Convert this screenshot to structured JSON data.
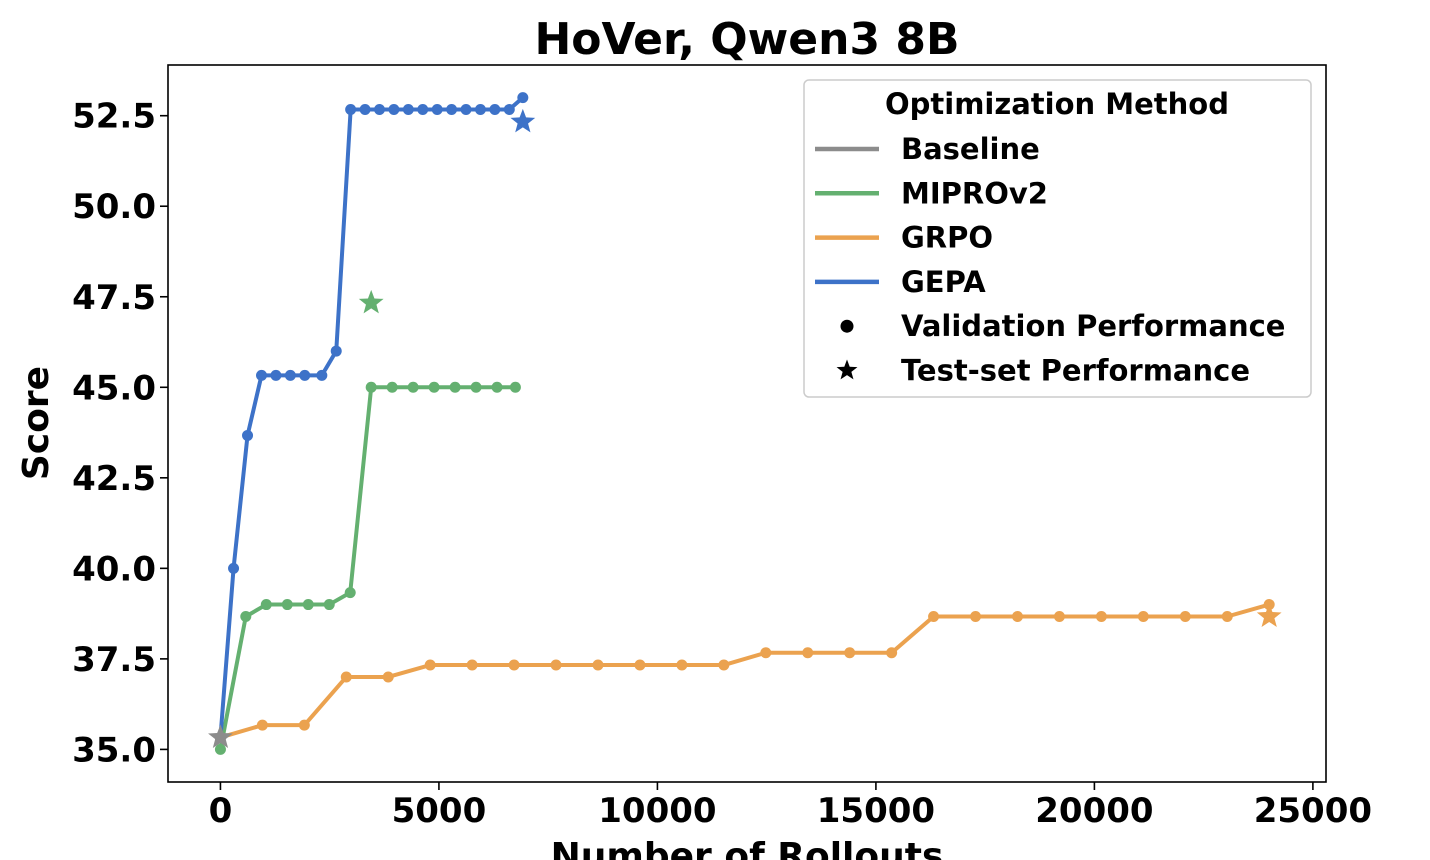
{
  "chart_data": {
    "type": "line",
    "title": "HoVer, Qwen3 8B",
    "xlabel": "Number of Rollouts",
    "ylabel": "Score",
    "xlim": [
      -1200,
      25300
    ],
    "ylim": [
      34.1,
      53.9
    ],
    "xticks": [
      0,
      5000,
      10000,
      15000,
      20000,
      25000
    ],
    "xtick_labels": [
      "0",
      "5000",
      "10000",
      "15000",
      "20000",
      "25000"
    ],
    "yticks": [
      35.0,
      37.5,
      40.0,
      42.5,
      45.0,
      47.5,
      50.0,
      52.5
    ],
    "ytick_labels": [
      "35.0",
      "37.5",
      "40.0",
      "42.5",
      "45.0",
      "47.5",
      "50.0",
      "52.5"
    ],
    "grid": false,
    "legend": {
      "title": "Optimization Method",
      "placement": "upper right",
      "entries": [
        {
          "label": "Baseline",
          "kind": "line",
          "color": "#8c8c8c"
        },
        {
          "label": "MIPROv2",
          "kind": "line",
          "color": "#64b070"
        },
        {
          "label": "GRPO",
          "kind": "line",
          "color": "#eba24f"
        },
        {
          "label": "GEPA",
          "kind": "line",
          "color": "#3d72c8"
        },
        {
          "label": "Validation Performance",
          "kind": "dot",
          "color": "#000000"
        },
        {
          "label": "Test-set Performance",
          "kind": "star",
          "color": "#000000"
        }
      ]
    },
    "series": [
      {
        "name": "GRPO",
        "color": "#eba24f",
        "x": [
          0,
          960,
          1920,
          2880,
          3840,
          4800,
          5760,
          6720,
          7680,
          8640,
          9600,
          10560,
          11520,
          12480,
          13440,
          14400,
          15360,
          16320,
          17280,
          18240,
          19200,
          20160,
          21120,
          22080,
          23040,
          24000
        ],
        "y": [
          35.33,
          35.67,
          35.67,
          37.0,
          37.0,
          37.33,
          37.33,
          37.33,
          37.33,
          37.33,
          37.33,
          37.33,
          37.33,
          37.67,
          37.67,
          37.67,
          37.67,
          38.67,
          38.67,
          38.67,
          38.67,
          38.67,
          38.67,
          38.67,
          38.67,
          39.0
        ],
        "test": {
          "x": 24000,
          "y": 38.67
        }
      },
      {
        "name": "MIPROv2",
        "color": "#64b070",
        "x": [
          0,
          580,
          1050,
          1530,
          2010,
          2490,
          2970,
          3450,
          3930,
          4410,
          4890,
          5370,
          5850,
          6330,
          6750
        ],
        "y": [
          35.0,
          38.67,
          39.0,
          39.0,
          39.0,
          39.0,
          39.33,
          45.0,
          45.0,
          45.0,
          45.0,
          45.0,
          45.0,
          45.0,
          45.0
        ],
        "test": {
          "x": 3450,
          "y": 47.33
        }
      },
      {
        "name": "GEPA",
        "color": "#3d72c8",
        "x": [
          0,
          300,
          620,
          940,
          1270,
          1600,
          1930,
          2320,
          2650,
          2980,
          3310,
          3640,
          3970,
          4300,
          4630,
          4960,
          5290,
          5620,
          5950,
          6280,
          6610,
          6920
        ],
        "y": [
          35.33,
          40.0,
          43.67,
          45.33,
          45.33,
          45.33,
          45.33,
          45.33,
          46.0,
          52.67,
          52.67,
          52.67,
          52.67,
          52.67,
          52.67,
          52.67,
          52.67,
          52.67,
          52.67,
          52.67,
          52.67,
          53.0
        ],
        "test": {
          "x": 6920,
          "y": 52.33
        }
      },
      {
        "name": "Baseline",
        "color": "#8c8c8c",
        "x": [
          0
        ],
        "y": [
          35.33
        ],
        "test": {
          "x": 0,
          "y": 35.33
        }
      }
    ]
  }
}
